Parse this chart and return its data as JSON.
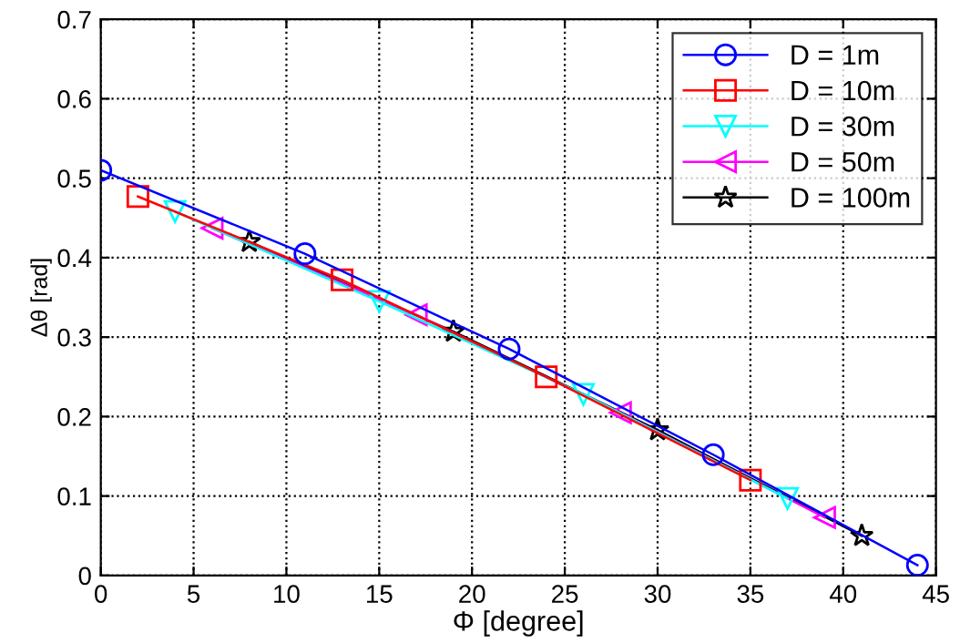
{
  "chart_data": {
    "type": "line",
    "xlabel": "Φ [degree]",
    "ylabel": "Δθ [rad]",
    "xlim": [
      0,
      45
    ],
    "ylim": [
      0,
      0.7
    ],
    "xticks": [
      0,
      5,
      10,
      15,
      20,
      25,
      30,
      35,
      40,
      45
    ],
    "yticks": [
      0,
      0.1,
      0.2,
      0.3,
      0.4,
      0.5,
      0.6,
      0.7
    ],
    "grid": true,
    "legend": "top right",
    "line_style": "solid",
    "series": [
      {
        "name": "D = 1m",
        "color": "#0000ff",
        "marker": "circle",
        "x": [
          0,
          11,
          22,
          33,
          44
        ],
        "values": [
          0.51,
          0.405,
          0.285,
          0.152,
          0.013
        ]
      },
      {
        "name": "D = 10m",
        "color": "#ff0000",
        "marker": "square",
        "x": [
          2,
          13,
          24,
          35
        ],
        "values": [
          0.477,
          0.372,
          0.25,
          0.12
        ]
      },
      {
        "name": "D = 30m",
        "color": "#00ffff",
        "marker": "triangle_down",
        "x": [
          4,
          15,
          26,
          37
        ],
        "values": [
          0.458,
          0.345,
          0.228,
          0.097
        ]
      },
      {
        "name": "D = 50m",
        "color": "#ff00ff",
        "marker": "triangle_left",
        "x": [
          6,
          17,
          28,
          39
        ],
        "values": [
          0.437,
          0.328,
          0.205,
          0.073
        ]
      },
      {
        "name": "D = 100m",
        "color": "#000000",
        "marker": "star",
        "x": [
          8,
          19,
          30,
          41
        ],
        "values": [
          0.42,
          0.307,
          0.183,
          0.05
        ]
      }
    ]
  }
}
